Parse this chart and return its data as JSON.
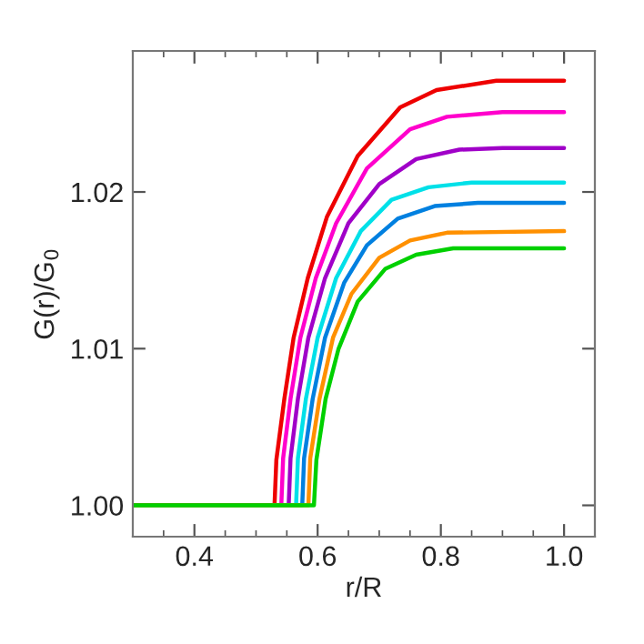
{
  "chart_data": {
    "type": "line",
    "xlabel": "r/R",
    "ylabel": "G(r)/G$_{0}$",
    "xlim": [
      0.3,
      1.05
    ],
    "ylim": [
      0.998,
      1.029
    ],
    "xticks": [
      {
        "value": 0.4,
        "label": "0.4"
      },
      {
        "value": 0.6,
        "label": "0.6"
      },
      {
        "value": 0.8,
        "label": "0.8"
      },
      {
        "value": 1.0,
        "label": "1.0"
      }
    ],
    "yticks": [
      {
        "value": 1.0,
        "label": "1.00"
      },
      {
        "value": 1.01,
        "label": "1.01"
      },
      {
        "value": 1.02,
        "label": "1.02"
      }
    ],
    "grid": false,
    "legend": false,
    "marker": "none",
    "line_style": "solid",
    "series": [
      {
        "color": "#ee0000",
        "x": [
          0.3,
          0.53,
          0.533,
          0.546,
          0.561,
          0.584,
          0.615,
          0.665,
          0.734,
          0.793,
          0.89,
          1.0
        ],
        "values": [
          1.0,
          1.0,
          1.0029,
          1.0068,
          1.0107,
          1.0145,
          1.0184,
          1.0223,
          1.0254,
          1.0265,
          1.0271,
          1.0271
        ]
      },
      {
        "color": "#ff00cc",
        "x": [
          0.3,
          0.541,
          0.544,
          0.556,
          0.572,
          0.597,
          0.63,
          0.68,
          0.75,
          0.81,
          0.9,
          1.0
        ],
        "values": [
          1.0,
          1.0,
          1.003,
          1.0068,
          1.0107,
          1.0145,
          1.018,
          1.0215,
          1.024,
          1.0248,
          1.0251,
          1.0251
        ]
      },
      {
        "color": "#a000c8",
        "x": [
          0.3,
          0.553,
          0.556,
          0.568,
          0.585,
          0.612,
          0.65,
          0.7,
          0.76,
          0.83,
          0.9,
          1.0
        ],
        "values": [
          1.0,
          1.0,
          1.003,
          1.0068,
          1.0107,
          1.0145,
          1.018,
          1.0205,
          1.0221,
          1.0227,
          1.0228,
          1.0228
        ]
      },
      {
        "color": "#00e0e8",
        "x": [
          0.3,
          0.565,
          0.568,
          0.581,
          0.6,
          0.63,
          0.67,
          0.72,
          0.78,
          0.85,
          1.0
        ],
        "values": [
          1.0,
          1.0,
          1.003,
          1.0068,
          1.0107,
          1.0145,
          1.0175,
          1.0195,
          1.0203,
          1.0206,
          1.0206
        ]
      },
      {
        "color": "#0080e0",
        "x": [
          0.3,
          0.575,
          0.578,
          0.592,
          0.612,
          0.643,
          0.68,
          0.73,
          0.79,
          0.86,
          1.0
        ],
        "values": [
          1.0,
          1.0,
          1.003,
          1.0068,
          1.0107,
          1.0142,
          1.0166,
          1.0183,
          1.0191,
          1.0193,
          1.0193
        ]
      },
      {
        "color": "#ff9000",
        "x": [
          0.3,
          0.585,
          0.588,
          0.603,
          0.625,
          0.655,
          0.7,
          0.75,
          0.81,
          1.0
        ],
        "values": [
          1.0,
          1.0,
          1.003,
          1.0068,
          1.0107,
          1.0135,
          1.0158,
          1.0169,
          1.0174,
          1.0175
        ]
      },
      {
        "color": "#00d000",
        "x": [
          0.3,
          0.594,
          0.598,
          0.613,
          0.634,
          0.665,
          0.71,
          0.76,
          0.82,
          1.0
        ],
        "values": [
          1.0,
          1.0,
          1.0029,
          1.0068,
          1.01,
          1.013,
          1.0151,
          1.016,
          1.0164,
          1.0164
        ]
      }
    ]
  }
}
